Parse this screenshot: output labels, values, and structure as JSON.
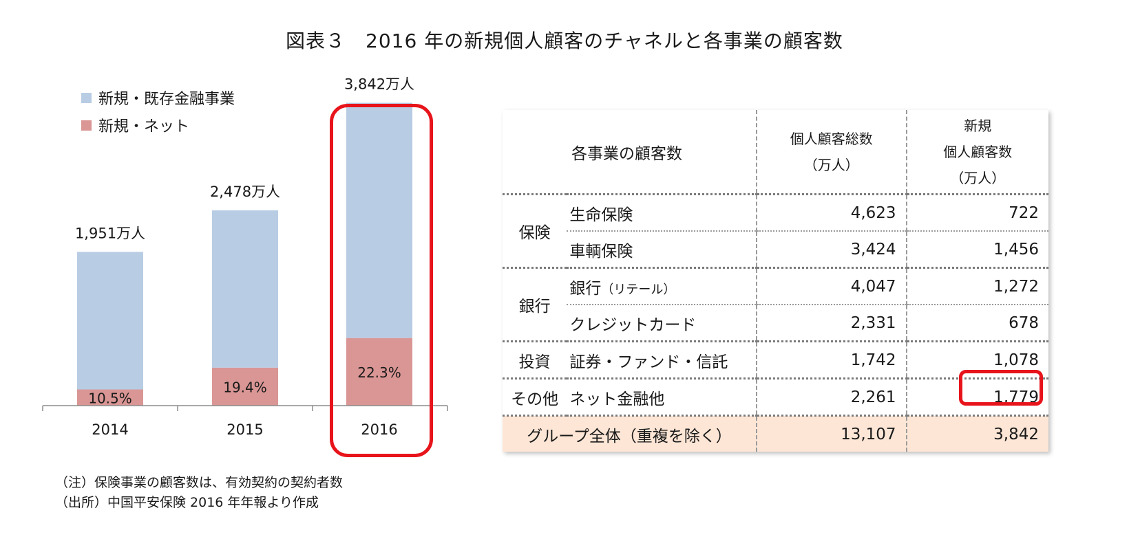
{
  "title": "図表３　2016 年の新規個人顧客のチャネルと各事業の顧客数",
  "legend": {
    "items": [
      {
        "label": "新規・既存金融事業",
        "color": "#b8cce4"
      },
      {
        "label": "新規・ネット",
        "color": "#d99694"
      }
    ]
  },
  "chart_data": {
    "type": "bar",
    "stacked": true,
    "categories": [
      "2014",
      "2015",
      "2016"
    ],
    "totals": [
      1951,
      2478,
      3842
    ],
    "total_labels": [
      "1,951万人",
      "2,478万人",
      "3,842万人"
    ],
    "net_share_pct": [
      10.5,
      19.4,
      22.3
    ],
    "net_share_labels": [
      "10.5%",
      "19.4%",
      "22.3%"
    ],
    "series": [
      {
        "name": "新規・ネット",
        "color": "#d99694",
        "values": [
          205,
          481,
          857
        ]
      },
      {
        "name": "新規・既存金融事業",
        "color": "#b8cce4",
        "values": [
          1746,
          1997,
          2985
        ]
      }
    ],
    "unit": "万人",
    "ylim": [
      0,
      4100
    ],
    "grid": false,
    "highlighted_category": "2016"
  },
  "notes": [
    "（注）保険事業の顧客数は、有効契約の契約者数",
    "（出所）中国平安保険 2016 年年報より作成"
  ],
  "table": {
    "header": {
      "item": "各事業の顧客数",
      "total_lines": [
        "個人顧客総数",
        "（万人）"
      ],
      "new_lines": [
        "新規",
        "個人顧客数",
        "（万人）"
      ]
    },
    "groups": [
      {
        "name": "保険",
        "rows": [
          {
            "item": "生命保険",
            "item_note": "",
            "total": "4,623",
            "new": "722"
          },
          {
            "item": "車輌保険",
            "item_note": "",
            "total": "3,424",
            "new": "1,456"
          }
        ]
      },
      {
        "name": "銀行",
        "rows": [
          {
            "item": "銀行",
            "item_note": "（リテール）",
            "total": "4,047",
            "new": "1,272"
          },
          {
            "item": "クレジットカード",
            "item_note": "",
            "total": "2,331",
            "new": "678"
          }
        ]
      },
      {
        "name": "投資",
        "rows": [
          {
            "item": "証券・ファンド・信託",
            "item_note": "",
            "total": "1,742",
            "new": "1,078"
          }
        ]
      },
      {
        "name": "その他",
        "rows": [
          {
            "item": "ネット金融他",
            "item_note": "",
            "total": "2,261",
            "new": "1,779"
          }
        ]
      }
    ],
    "total_row": {
      "label": "グループ全体（重複を除く）",
      "total": "13,107",
      "new": "3,842"
    },
    "highlight_color": "#e8141b"
  }
}
